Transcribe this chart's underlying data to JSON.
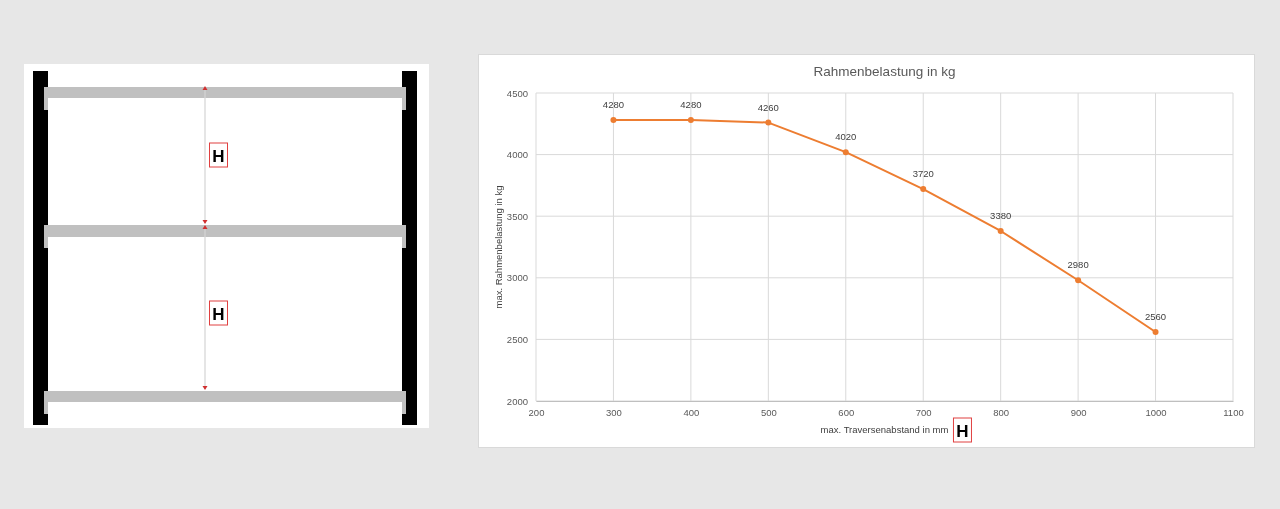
{
  "chart_data": {
    "type": "line",
    "title": "Rahmenbelastung in kg",
    "xlabel": "max. Traversenabstand in mm",
    "ylabel": "max. Rahmenbelastung in kg",
    "x": [
      300,
      400,
      500,
      600,
      700,
      800,
      900,
      1000
    ],
    "series": [
      {
        "color": "#ed7d31",
        "values": [
          4280,
          4280,
          4260,
          4020,
          3720,
          3380,
          2980,
          2560
        ]
      }
    ],
    "xlim": [
      200,
      1100
    ],
    "xticks": [
      200,
      300,
      400,
      500,
      600,
      700,
      800,
      900,
      1000,
      1100
    ],
    "ylim": [
      2000,
      4500
    ],
    "yticks": [
      2000,
      2500,
      3000,
      3500,
      4000,
      4500
    ],
    "grid": true,
    "marker": "circle",
    "line_style": "solid",
    "data_labels": true,
    "annotations": [
      "H",
      "H",
      "H"
    ]
  }
}
